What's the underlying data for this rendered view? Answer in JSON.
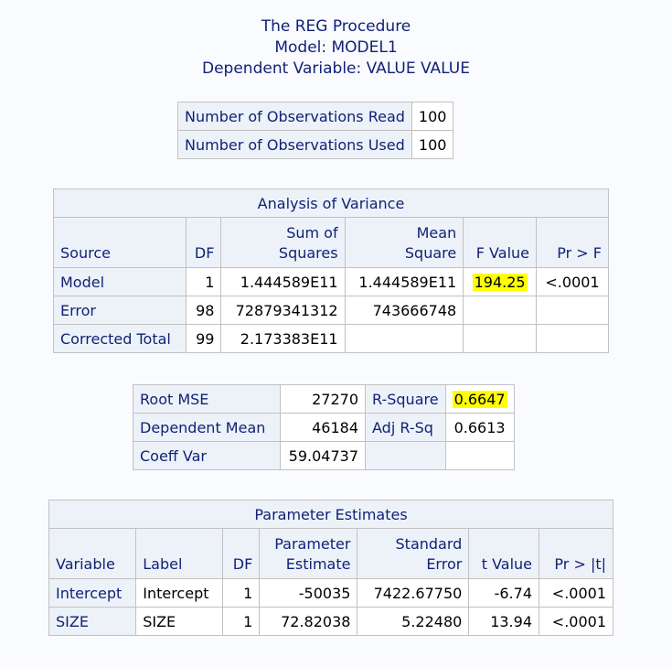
{
  "titles": {
    "procedure": "The REG Procedure",
    "model": "Model: MODEL1",
    "dependent": "Dependent Variable: VALUE VALUE"
  },
  "observations": [
    {
      "label": "Number of Observations Read",
      "value": "100"
    },
    {
      "label": "Number of Observations Used",
      "value": "100"
    }
  ],
  "anova": {
    "caption": "Analysis of Variance",
    "headers": {
      "source": "Source",
      "df": "DF",
      "ss_line1": "Sum of",
      "ss_line2": "Squares",
      "ms_line1": "Mean",
      "ms_line2": "Square",
      "f": "F Value",
      "p": "Pr > F"
    },
    "rows": [
      {
        "source": "Model",
        "df": "1",
        "ss": "1.444589E11",
        "ms": "1.444589E11",
        "f": "194.25",
        "p": "<.0001"
      },
      {
        "source": "Error",
        "df": "98",
        "ss": "72879341312",
        "ms": "743666748",
        "f": "",
        "p": ""
      },
      {
        "source": "Corrected Total",
        "df": "99",
        "ss": "2.173383E11",
        "ms": "",
        "f": "",
        "p": ""
      }
    ]
  },
  "fit": {
    "rows": [
      {
        "l1": "Root MSE",
        "v1": "27270",
        "l2": "R-Square",
        "v2": "0.6647"
      },
      {
        "l1": "Dependent Mean",
        "v1": "46184",
        "l2": "Adj R-Sq",
        "v2": "0.6613"
      },
      {
        "l1": "Coeff Var",
        "v1": "59.04737",
        "l2": "",
        "v2": ""
      }
    ]
  },
  "params": {
    "caption": "Parameter Estimates",
    "headers": {
      "variable": "Variable",
      "label": "Label",
      "df": "DF",
      "est_line1": "Parameter",
      "est_line2": "Estimate",
      "se_line1": "Standard",
      "se_line2": "Error",
      "t": "t Value",
      "p": "Pr > |t|"
    },
    "rows": [
      {
        "variable": "Intercept",
        "label": "Intercept",
        "df": "1",
        "est": "-50035",
        "se": "7422.67750",
        "t": "-6.74",
        "p": "<.0001"
      },
      {
        "variable": "SIZE",
        "label": "SIZE",
        "df": "1",
        "est": "72.82038",
        "se": "5.22480",
        "t": "13.94",
        "p": "<.0001"
      }
    ]
  },
  "colors": {
    "text": "#112277",
    "header_bg": "#edf2f9",
    "border": "#c1c1c1",
    "highlight": "#ffff00"
  }
}
